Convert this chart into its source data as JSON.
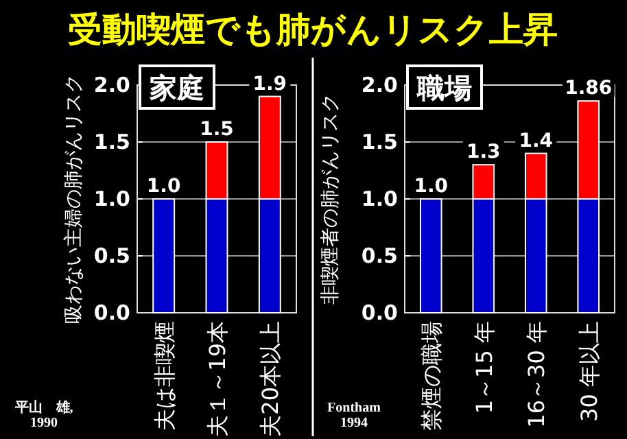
{
  "chart_data": [
    {
      "type": "bar",
      "title": "受動喫煙でも肺がんリスク上昇",
      "subtitle": "家庭",
      "ylabel": "吸わない主婦の肺がんリスク",
      "categories": [
        "夫は非喫煙",
        "夫１～19本",
        "夫20本以上"
      ],
      "stacked": true,
      "series": [
        {
          "color": "#0000cc",
          "values": [
            1.0,
            1.0,
            1.0
          ]
        },
        {
          "color": "#ff0000",
          "values": [
            null,
            0.5,
            0.9
          ]
        }
      ],
      "totals": [
        "1.0",
        "1.5",
        "1.9"
      ],
      "ylim": [
        0,
        2
      ],
      "yticks": [
        {
          "value": 0,
          "label": "0.0"
        },
        {
          "value": 0.5,
          "label": "0.5"
        },
        {
          "value": 1,
          "label": "1.0"
        },
        {
          "value": 1.5,
          "label": "1.5"
        },
        {
          "value": 2,
          "label": "2.0"
        }
      ],
      "grid": "y",
      "annotations": [
        "平山　雄,\n1990"
      ]
    },
    {
      "type": "bar",
      "subtitle": "職場",
      "ylabel": "非喫煙者の肺がんリスク",
      "categories": [
        "禁煙の職場",
        "1～15 年",
        "16～30 年",
        "30 年以上"
      ],
      "stacked": true,
      "series": [
        {
          "color": "#0000cc",
          "values": [
            1.0,
            1.0,
            1.0,
            1.0
          ]
        },
        {
          "color": "#ff0000",
          "values": [
            null,
            0.3,
            0.4,
            0.86
          ]
        }
      ],
      "totals": [
        "1.0",
        "1.3",
        "1.4",
        "1.86"
      ],
      "ylim": [
        0,
        2
      ],
      "yticks": [
        {
          "value": 0,
          "label": "0.0"
        },
        {
          "value": 0.5,
          "label": "0.5"
        },
        {
          "value": 1,
          "label": "1.0"
        },
        {
          "value": 1.5,
          "label": "1.5"
        },
        {
          "value": 2,
          "label": "2.0"
        }
      ],
      "grid": "y",
      "annotations": [
        "Fontham\n1994"
      ]
    }
  ]
}
